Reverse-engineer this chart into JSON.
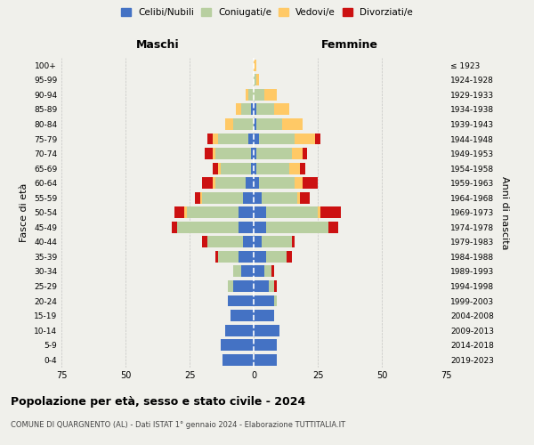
{
  "age_groups": [
    "0-4",
    "5-9",
    "10-14",
    "15-19",
    "20-24",
    "25-29",
    "30-34",
    "35-39",
    "40-44",
    "45-49",
    "50-54",
    "55-59",
    "60-64",
    "65-69",
    "70-74",
    "75-79",
    "80-84",
    "85-89",
    "90-94",
    "95-99",
    "100+"
  ],
  "birth_years": [
    "2019-2023",
    "2014-2018",
    "2009-2013",
    "2004-2008",
    "1999-2003",
    "1994-1998",
    "1989-1993",
    "1984-1988",
    "1979-1983",
    "1974-1978",
    "1969-1973",
    "1964-1968",
    "1959-1963",
    "1954-1958",
    "1949-1953",
    "1944-1948",
    "1939-1943",
    "1934-1938",
    "1929-1933",
    "1924-1928",
    "≤ 1923"
  ],
  "male_celibe": [
    12,
    13,
    11,
    9,
    10,
    8,
    5,
    6,
    4,
    6,
    6,
    4,
    3,
    1,
    1,
    2,
    0,
    1,
    0,
    0,
    0
  ],
  "male_coniugato": [
    0,
    0,
    0,
    0,
    0,
    2,
    3,
    8,
    14,
    24,
    20,
    16,
    12,
    12,
    14,
    12,
    8,
    4,
    2,
    0,
    0
  ],
  "male_vedovo": [
    0,
    0,
    0,
    0,
    0,
    0,
    0,
    0,
    0,
    0,
    1,
    1,
    1,
    1,
    1,
    2,
    3,
    2,
    1,
    0,
    0
  ],
  "male_divorziato": [
    0,
    0,
    0,
    0,
    0,
    0,
    0,
    1,
    2,
    2,
    4,
    2,
    4,
    2,
    3,
    2,
    0,
    0,
    0,
    0,
    0
  ],
  "female_celibe": [
    9,
    9,
    10,
    8,
    8,
    6,
    4,
    5,
    3,
    5,
    5,
    3,
    2,
    1,
    1,
    2,
    1,
    1,
    0,
    0,
    0
  ],
  "female_coniugato": [
    0,
    0,
    0,
    0,
    1,
    2,
    3,
    8,
    12,
    24,
    20,
    14,
    14,
    13,
    14,
    14,
    10,
    7,
    4,
    1,
    0
  ],
  "female_vedovo": [
    0,
    0,
    0,
    0,
    0,
    0,
    0,
    0,
    0,
    0,
    1,
    1,
    3,
    4,
    4,
    8,
    8,
    6,
    5,
    1,
    1
  ],
  "female_divorziato": [
    0,
    0,
    0,
    0,
    0,
    1,
    1,
    2,
    1,
    4,
    8,
    4,
    6,
    2,
    2,
    2,
    0,
    0,
    0,
    0,
    0
  ],
  "colors": {
    "celibe": "#4472c4",
    "coniugato": "#b8cfa0",
    "vedovo": "#ffc966",
    "divorziato": "#cc1111"
  },
  "xlim": 75,
  "title": "Popolazione per età, sesso e stato civile - 2024",
  "subtitle": "COMUNE DI QUARGNENTO (AL) - Dati ISTAT 1° gennaio 2024 - Elaborazione TUTTITALIA.IT",
  "ylabel_left": "Fasce di età",
  "ylabel_right": "Anni di nascita",
  "xlabel_left": "Maschi",
  "xlabel_right": "Femmine",
  "background_color": "#f0f0eb",
  "legend_labels": [
    "Celibi/Nubili",
    "Coniugati/e",
    "Vedovi/e",
    "Divorziati/e"
  ]
}
